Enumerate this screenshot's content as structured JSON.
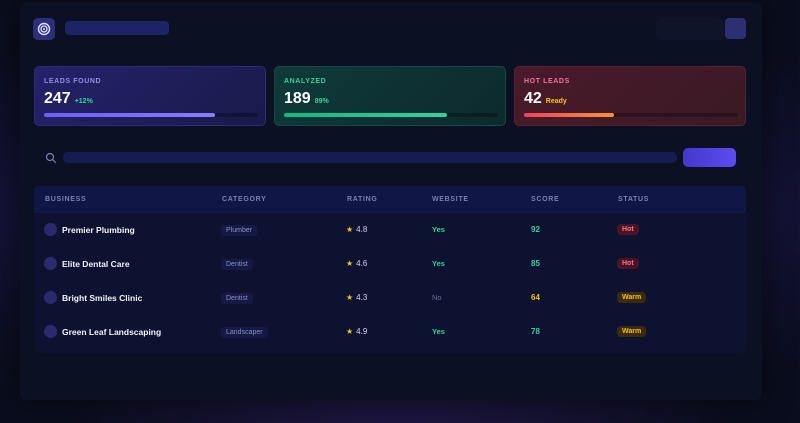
{
  "header": {
    "icon": "spiral-logo-icon",
    "title": ""
  },
  "stats": [
    {
      "label": "LEADS FOUND",
      "value": "247",
      "delta": "+12%",
      "progress": 0.8
    },
    {
      "label": "ANALYZED",
      "value": "189",
      "delta": "89%",
      "progress": 0.76
    },
    {
      "label": "HOT LEADS",
      "value": "42",
      "delta": "Ready",
      "progress": 0.42
    }
  ],
  "search": {
    "placeholder": "",
    "button_label": ""
  },
  "table": {
    "columns": [
      "BUSINESS",
      "CATEGORY",
      "RATING",
      "WEBSITE",
      "SCORE",
      "STATUS"
    ],
    "rows": [
      {
        "business": "Premier Plumbing",
        "category": "Plumber",
        "rating": "4.8",
        "website": "Yes",
        "score": "92",
        "status": "Hot"
      },
      {
        "business": "Elite Dental Care",
        "category": "Dentist",
        "rating": "4.6",
        "website": "Yes",
        "score": "85",
        "status": "Hot"
      },
      {
        "business": "Bright Smiles Clinic",
        "category": "Dentist",
        "rating": "4.3",
        "website": "No",
        "score": "64",
        "status": "Warm"
      },
      {
        "business": "Green Leaf Landscaping",
        "category": "Landscaper",
        "rating": "4.9",
        "website": "Yes",
        "score": "78",
        "status": "Warm"
      }
    ]
  },
  "colors": {
    "background": "#0b1022",
    "accent": "#5b4df0",
    "positive": "#34d399",
    "warning": "#fbbf24",
    "hot": "#fb7185"
  }
}
